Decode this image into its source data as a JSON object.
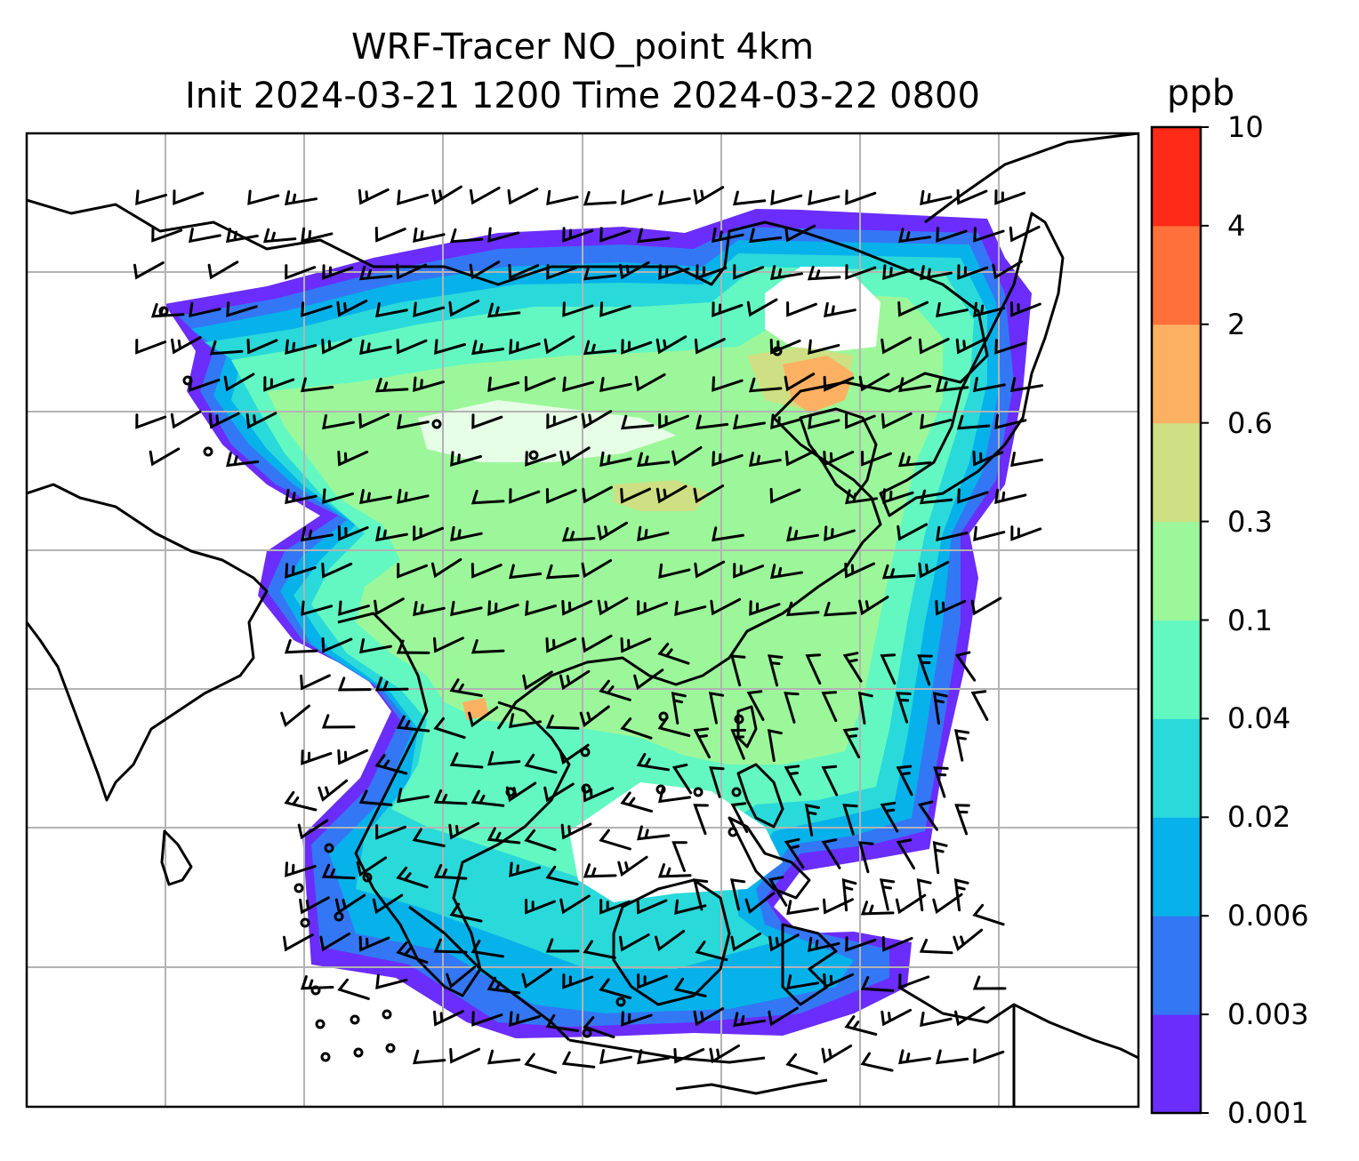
{
  "title": {
    "line1": "WRF-Tracer NO_point 4km",
    "line2": "Init 2024-03-21 1200 Time 2024-03-22 0800"
  },
  "colorbar": {
    "unit": "ppb",
    "labels": [
      "10",
      "4",
      "2",
      "0.6",
      "0.3",
      "0.1",
      "0.04",
      "0.02",
      "0.006",
      "0.003",
      "0.001"
    ],
    "colors": [
      "#6a2dfb",
      "#3477f4",
      "#07b1ea",
      "#2ad9d9",
      "#63f8c1",
      "#9cf79a",
      "#cee083",
      "#fcb062",
      "#ff703a",
      "#ff2a17"
    ]
  },
  "map": {
    "gridlines": true,
    "grid_color": "#b3b3b3",
    "coastline_color": "#000000",
    "feature_icons": [
      "coastline",
      "wind-barbs",
      "calm-wind-circles",
      "tracer-concentration-fill"
    ]
  }
}
